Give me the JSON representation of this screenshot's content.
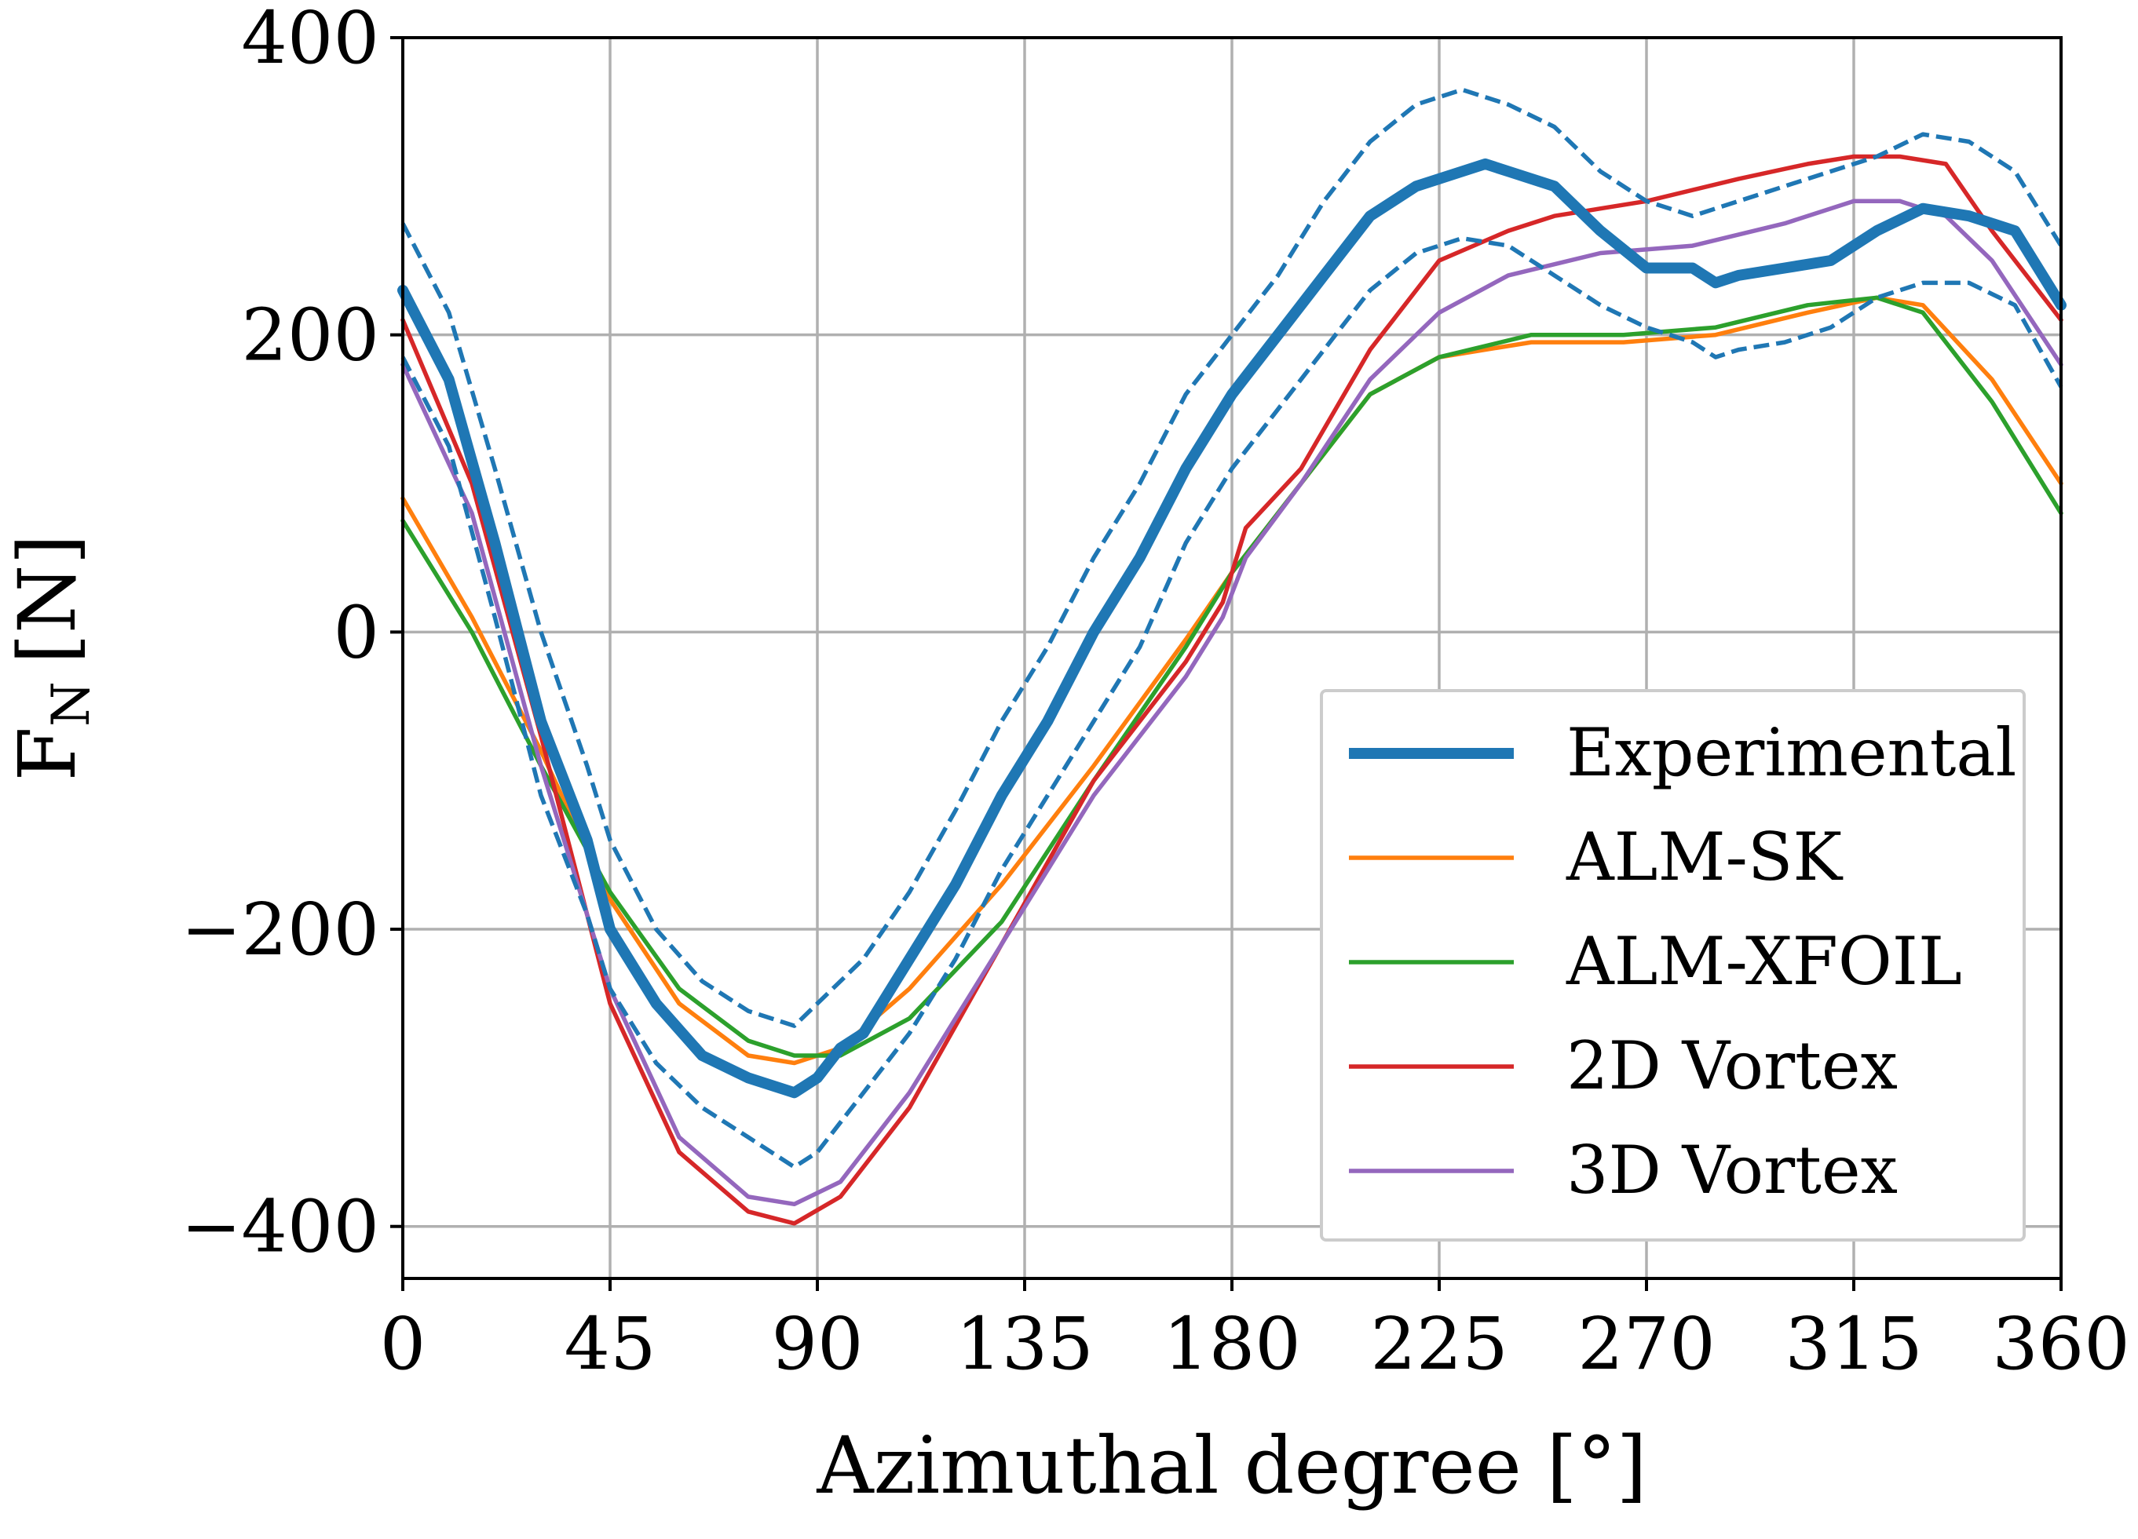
{
  "chart_data": {
    "type": "line",
    "title": "",
    "xlabel": "Azimuthal degree [°]",
    "ylabel": "F",
    "ylabel_sub": "N",
    "ylabel_unit": "[N]",
    "xlim": [
      0,
      360
    ],
    "ylim": [
      -435,
      400
    ],
    "xticks": [
      0,
      45,
      90,
      135,
      180,
      225,
      270,
      315,
      360
    ],
    "xtick_labels": [
      "0",
      "45",
      "90",
      "135",
      "180",
      "225",
      "270",
      "315",
      "360"
    ],
    "yticks": [
      400,
      200,
      0,
      -200,
      -400
    ],
    "ytick_labels": [
      "400",
      "200",
      "0",
      "−200",
      "−400"
    ],
    "grid": true,
    "legend_position": "lower-right",
    "series": [
      {
        "name": "Experimental",
        "color": "#1f77b4",
        "style": "thick",
        "x": [
          0,
          10,
          20,
          30,
          40,
          45,
          55,
          65,
          75,
          85,
          90,
          95,
          100,
          110,
          120,
          130,
          140,
          150,
          160,
          170,
          180,
          190,
          200,
          210,
          220,
          230,
          235,
          240,
          250,
          260,
          270,
          280,
          285,
          290,
          300,
          310,
          320,
          330,
          340,
          350,
          360
        ],
        "y": [
          230,
          170,
          60,
          -60,
          -140,
          -200,
          -250,
          -285,
          -300,
          -310,
          -300,
          -280,
          -270,
          -220,
          -170,
          -110,
          -60,
          0,
          50,
          110,
          160,
          200,
          240,
          280,
          300,
          310,
          315,
          310,
          300,
          270,
          245,
          245,
          235,
          240,
          245,
          250,
          270,
          285,
          280,
          270,
          220
        ]
      },
      {
        "name": "Experimental upper bound",
        "color": "#1f77b4",
        "style": "dashed",
        "x": [
          0,
          10,
          20,
          30,
          40,
          45,
          55,
          65,
          75,
          85,
          90,
          100,
          110,
          120,
          130,
          140,
          150,
          160,
          170,
          180,
          190,
          200,
          210,
          220,
          230,
          240,
          250,
          260,
          270,
          280,
          290,
          300,
          310,
          320,
          330,
          340,
          350,
          360
        ],
        "y": [
          275,
          215,
          110,
          0,
          -90,
          -140,
          -200,
          -235,
          -255,
          -265,
          -250,
          -220,
          -175,
          -120,
          -60,
          -10,
          50,
          100,
          160,
          200,
          240,
          290,
          330,
          355,
          365,
          355,
          340,
          310,
          290,
          280,
          290,
          300,
          310,
          320,
          335,
          330,
          310,
          260
        ]
      },
      {
        "name": "Experimental lower bound",
        "color": "#1f77b4",
        "style": "dashed",
        "x": [
          0,
          10,
          20,
          30,
          40,
          45,
          55,
          65,
          75,
          85,
          90,
          100,
          110,
          120,
          130,
          140,
          150,
          160,
          170,
          180,
          190,
          200,
          210,
          220,
          230,
          240,
          250,
          260,
          270,
          280,
          285,
          290,
          300,
          310,
          320,
          330,
          340,
          350,
          360
        ],
        "y": [
          185,
          125,
          10,
          -110,
          -190,
          -240,
          -290,
          -320,
          -340,
          -360,
          -350,
          -310,
          -270,
          -220,
          -160,
          -110,
          -60,
          -10,
          60,
          110,
          150,
          190,
          230,
          255,
          265,
          260,
          240,
          220,
          205,
          195,
          185,
          190,
          195,
          205,
          225,
          235,
          235,
          220,
          165
        ]
      },
      {
        "name": "ALM-SK",
        "color": "#ff7f0e",
        "style": "solid",
        "x": [
          0,
          15,
          30,
          45,
          60,
          75,
          85,
          95,
          110,
          130,
          150,
          170,
          180,
          195,
          210,
          225,
          245,
          265,
          285,
          305,
          320,
          330,
          345,
          360
        ],
        "y": [
          90,
          10,
          -80,
          -180,
          -250,
          -285,
          -290,
          -280,
          -240,
          -170,
          -90,
          -5,
          40,
          100,
          160,
          185,
          195,
          195,
          200,
          215,
          225,
          220,
          170,
          100
        ]
      },
      {
        "name": "ALM-XFOIL",
        "color": "#2ca02c",
        "style": "solid",
        "x": [
          0,
          15,
          30,
          45,
          60,
          75,
          85,
          95,
          110,
          130,
          150,
          170,
          180,
          195,
          210,
          225,
          245,
          265,
          285,
          305,
          320,
          330,
          345,
          360
        ],
        "y": [
          75,
          0,
          -90,
          -175,
          -240,
          -275,
          -285,
          -285,
          -260,
          -195,
          -100,
          -10,
          40,
          100,
          160,
          185,
          200,
          200,
          205,
          220,
          225,
          215,
          155,
          80
        ]
      },
      {
        "name": "2D Vortex",
        "color": "#d62728",
        "style": "solid",
        "x": [
          0,
          15,
          30,
          45,
          60,
          75,
          85,
          95,
          110,
          130,
          150,
          170,
          178,
          183,
          195,
          210,
          225,
          240,
          250,
          270,
          290,
          305,
          315,
          325,
          335,
          345,
          360
        ],
        "y": [
          210,
          100,
          -70,
          -250,
          -350,
          -390,
          -398,
          -380,
          -320,
          -210,
          -100,
          -20,
          20,
          70,
          110,
          190,
          250,
          270,
          280,
          290,
          305,
          315,
          320,
          320,
          315,
          270,
          210
        ]
      },
      {
        "name": "3D Vortex",
        "color": "#9467bd",
        "style": "solid",
        "x": [
          0,
          15,
          30,
          45,
          60,
          75,
          85,
          95,
          110,
          130,
          150,
          170,
          178,
          183,
          195,
          210,
          225,
          240,
          260,
          280,
          300,
          315,
          325,
          335,
          345,
          360
        ],
        "y": [
          180,
          80,
          -90,
          -240,
          -340,
          -380,
          -385,
          -370,
          -310,
          -210,
          -110,
          -30,
          10,
          50,
          100,
          170,
          215,
          240,
          255,
          260,
          275,
          290,
          290,
          280,
          250,
          180
        ]
      }
    ],
    "legend": [
      {
        "label": "Experimental",
        "color": "#1f77b4",
        "style": "thick"
      },
      {
        "label": "ALM-SK",
        "color": "#ff7f0e",
        "style": "solid"
      },
      {
        "label": "ALM-XFOIL",
        "color": "#2ca02c",
        "style": "solid"
      },
      {
        "label": "2D Vortex",
        "color": "#d62728",
        "style": "solid"
      },
      {
        "label": "3D Vortex",
        "color": "#9467bd",
        "style": "solid"
      }
    ]
  }
}
